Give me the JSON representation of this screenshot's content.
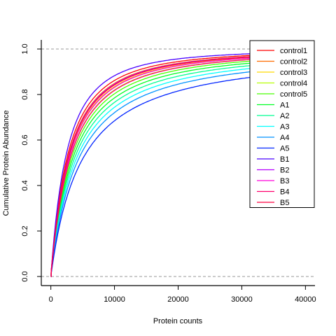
{
  "chart_data": {
    "type": "line",
    "title": "",
    "xlabel": "Protein counts",
    "ylabel": "Cumulative Protein Abundance",
    "xlim": [
      -1500,
      41500
    ],
    "ylim": [
      -0.04,
      1.04
    ],
    "xticks": [
      0,
      10000,
      20000,
      30000,
      40000
    ],
    "yticks": [
      0.0,
      0.2,
      0.4,
      0.6,
      0.8,
      1.0
    ],
    "xtick_labels": [
      "0",
      "10000",
      "20000",
      "30000",
      "40000"
    ],
    "ytick_labels": [
      "0.0",
      "0.2",
      "0.4",
      "0.6",
      "0.8",
      "1.0"
    ],
    "reference_lines": [
      0.0,
      1.0
    ],
    "legend_position": "top-right",
    "curve_model": {
      "x_start": 50,
      "x_end": 41000,
      "threshold": 5000,
      "description": "cumulative curve rising steeply from 0 near x=0 and saturating at 1.0 near x=30000"
    },
    "series": [
      {
        "name": "control1",
        "color": "#FF0000",
        "k": 1.8
      },
      {
        "name": "control2",
        "color": "#FF6D00",
        "k": 1.72
      },
      {
        "name": "control3",
        "color": "#FFDB00",
        "k": 1.64
      },
      {
        "name": "control4",
        "color": "#B6FF00",
        "k": 1.56
      },
      {
        "name": "control5",
        "color": "#49FF00",
        "k": 1.48
      },
      {
        "name": "A1",
        "color": "#00FF24",
        "k": 1.4
      },
      {
        "name": "A2",
        "color": "#00FF92",
        "k": 1.32
      },
      {
        "name": "A3",
        "color": "#00FFFF",
        "k": 1.24
      },
      {
        "name": "A4",
        "color": "#0092FF",
        "k": 1.16
      },
      {
        "name": "A5",
        "color": "#0024FF",
        "k": 1.05
      },
      {
        "name": "B1",
        "color": "#4900FF",
        "k": 1.95
      },
      {
        "name": "B2",
        "color": "#B600FF",
        "k": 1.7
      },
      {
        "name": "B3",
        "color": "#FF00DB",
        "k": 1.62
      },
      {
        "name": "B4",
        "color": "#FF006D",
        "k": 1.55
      },
      {
        "name": "B5",
        "color": "#FF0040",
        "k": 1.68
      }
    ]
  }
}
